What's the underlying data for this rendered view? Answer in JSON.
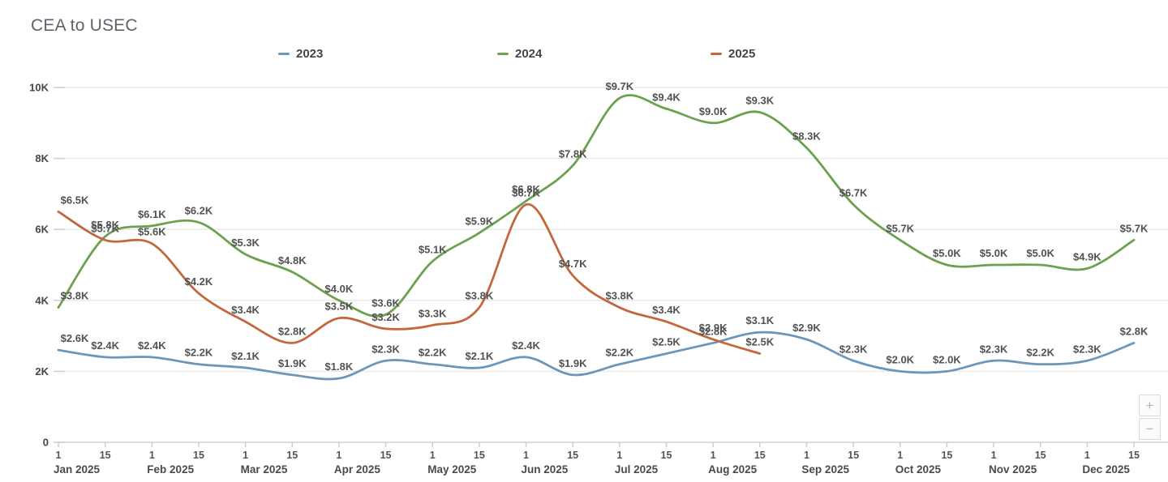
{
  "page": {
    "title": "CEA to USEC"
  },
  "legend": [
    {
      "label": "2023",
      "color": "#6d97ba"
    },
    {
      "label": "2024",
      "color": "#6ca150"
    },
    {
      "label": "2025",
      "color": "#c2683c"
    }
  ],
  "zoom_controls": {
    "zoom_in_label": "+",
    "zoom_out_label": "−"
  },
  "chart_data": {
    "type": "line",
    "title": "CEA to USEC",
    "x_months": [
      "Jan 2025",
      "Feb 2025",
      "Mar 2025",
      "Apr 2025",
      "May 2025",
      "Jun 2025",
      "Jul 2025",
      "Aug 2025",
      "Sep 2025",
      "Oct 2025",
      "Nov 2025",
      "Dec 2025"
    ],
    "x_day_ticks": [
      "1",
      "15"
    ],
    "x_points_per_month": 2,
    "y_ticks": [
      {
        "value": 0,
        "label": "0"
      },
      {
        "value": 2000,
        "label": "2K"
      },
      {
        "value": 4000,
        "label": "4K"
      },
      {
        "value": 6000,
        "label": "6K"
      },
      {
        "value": 8000,
        "label": "8K"
      },
      {
        "value": 10000,
        "label": "10K"
      }
    ],
    "ylim": [
      0,
      10000
    ],
    "grid": true,
    "legend_position": "top",
    "value_label_format": "$<value>K",
    "series": [
      {
        "name": "2023",
        "color": "#6d97ba",
        "values_k": [
          2.6,
          2.4,
          2.4,
          2.2,
          2.1,
          1.9,
          1.8,
          2.3,
          2.2,
          2.1,
          2.4,
          1.9,
          2.2,
          2.5,
          2.8,
          3.1,
          2.9,
          2.3,
          2.0,
          2.0,
          2.3,
          2.2,
          2.3,
          2.8
        ]
      },
      {
        "name": "2024",
        "color": "#6ca150",
        "values_k": [
          3.8,
          5.8,
          6.1,
          6.2,
          5.3,
          4.8,
          4.0,
          3.6,
          5.1,
          5.9,
          6.8,
          7.8,
          9.7,
          9.4,
          9.0,
          9.3,
          8.3,
          6.7,
          5.7,
          5.0,
          5.0,
          5.0,
          4.9,
          5.7
        ]
      },
      {
        "name": "2025",
        "color": "#c2683c",
        "values_k": [
          6.5,
          5.7,
          5.6,
          4.2,
          3.4,
          2.8,
          3.5,
          3.2,
          3.3,
          3.8,
          6.7,
          4.7,
          3.8,
          3.4,
          2.9,
          2.5
        ]
      }
    ]
  }
}
